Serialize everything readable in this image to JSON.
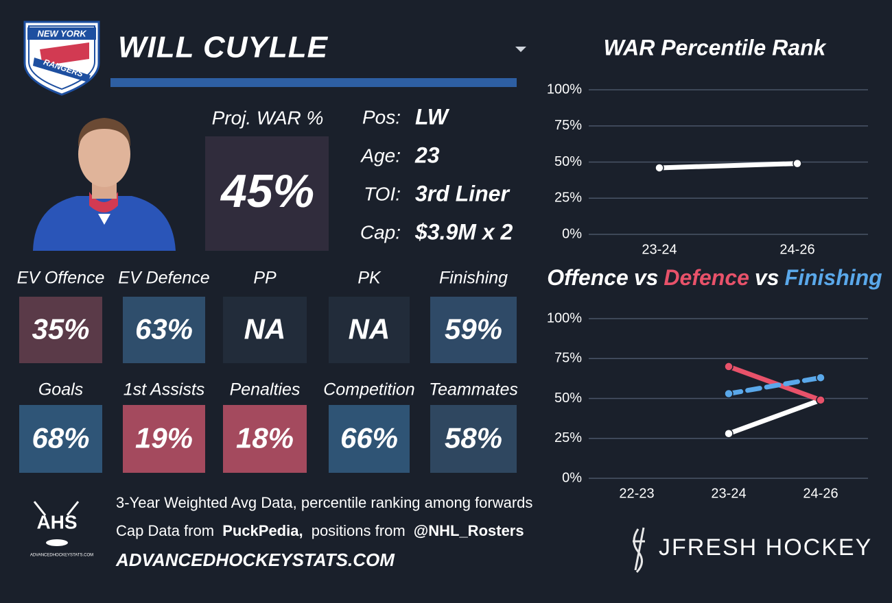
{
  "header": {
    "team_logo": [
      "NEW YORK",
      "RANGERS"
    ],
    "player": "WILL CUYLLE"
  },
  "card": {
    "proj_label": "Proj. WAR %",
    "proj_value": "45%",
    "info": [
      {
        "label": "Pos:",
        "value": "LW"
      },
      {
        "label": "Age:",
        "value": "23"
      },
      {
        "label": "TOI:",
        "value": "3rd Liner"
      },
      {
        "label": "Cap:",
        "value": "$3.9M x 2"
      }
    ],
    "tiles": [
      {
        "label": "EV Offence",
        "value": "35%",
        "color": "#5a3a48"
      },
      {
        "label": "EV Defence",
        "value": "63%",
        "color": "#2f4e6c"
      },
      {
        "label": "PP",
        "value": "NA",
        "color": "#222c3a"
      },
      {
        "label": "PK",
        "value": "NA",
        "color": "#222c3a"
      },
      {
        "label": "Finishing",
        "value": "59%",
        "color": "#2f4a67"
      },
      {
        "label": "Goals",
        "value": "68%",
        "color": "#2f5577"
      },
      {
        "label": "1st Assists",
        "value": "19%",
        "color": "#a44a5e"
      },
      {
        "label": "Penalties",
        "value": "18%",
        "color": "#a44a5e"
      },
      {
        "label": "Competition",
        "value": "66%",
        "color": "#2f5475"
      },
      {
        "label": "Teammates",
        "value": "58%",
        "color": "#2f4760"
      }
    ]
  },
  "footer": {
    "note": "3-Year Weighted Avg Data, percentile ranking among forwards",
    "credits": [
      "Cap Data from",
      "PuckPedia,",
      "positions from",
      "@NHL_Rosters"
    ],
    "site": "ADVANCEDHOCKEYSTATS.COM",
    "ahs_logo": "AHS",
    "ahs_logo_url": "ADVANCEDHOCKEYSTATS.COM",
    "brand": "JFRESH HOCKEY"
  },
  "chart_data": [
    {
      "type": "line",
      "title": "WAR Percentile Rank",
      "categories": [
        "23-24",
        "24-26"
      ],
      "values": [
        46,
        49
      ],
      "color": "#ffffff",
      "ylim": [
        0,
        100
      ],
      "yticks": [
        {
          "value": 0,
          "label": "0%"
        },
        {
          "value": 25,
          "label": "25%"
        },
        {
          "value": 50,
          "label": "50%"
        },
        {
          "value": 75,
          "label": "75%"
        },
        {
          "value": 100,
          "label": "100%"
        }
      ],
      "grid": true
    },
    {
      "type": "line",
      "title_joiner": "vs",
      "categories": [
        "22-23",
        "23-24",
        "24-26"
      ],
      "series": [
        {
          "name": "Offence",
          "color": "#ffffff",
          "values": [
            null,
            28,
            49
          ]
        },
        {
          "name": "Defence",
          "color": "#e8526a",
          "values": [
            null,
            70,
            49
          ]
        },
        {
          "name": "Finishing",
          "color": "#5aa8ea",
          "values": [
            null,
            53,
            63
          ],
          "dashed": true
        }
      ],
      "ylim": [
        0,
        100
      ],
      "yticks": [
        {
          "value": 0,
          "label": "0%"
        },
        {
          "value": 25,
          "label": "25%"
        },
        {
          "value": 50,
          "label": "50%"
        },
        {
          "value": 75,
          "label": "75%"
        },
        {
          "value": 100,
          "label": "100%"
        }
      ],
      "grid": true
    }
  ]
}
